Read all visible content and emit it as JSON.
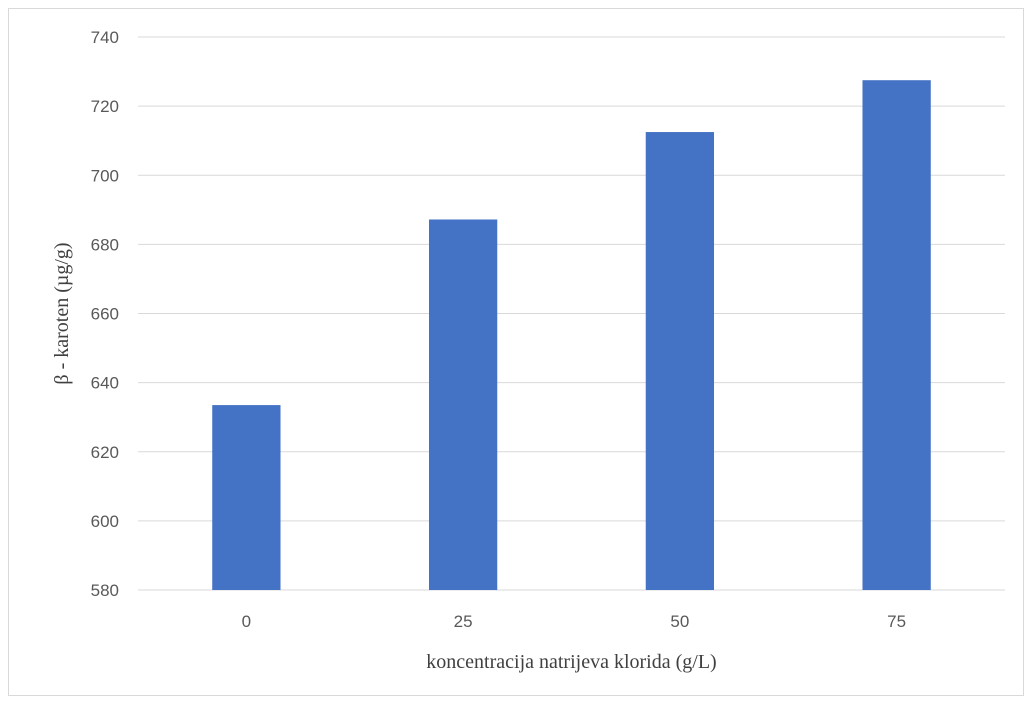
{
  "chart_data": {
    "type": "bar",
    "title": "",
    "xlabel": "koncentracija natrijeva klorida (g/L)",
    "ylabel": "β - karoten (µg/g)",
    "categories": [
      "0",
      "25",
      "50",
      "75"
    ],
    "values": [
      633.5,
      687.2,
      712.5,
      727.5
    ],
    "ylim": [
      580,
      740
    ],
    "yticks": [
      580,
      600,
      620,
      640,
      660,
      680,
      700,
      720,
      740
    ],
    "grid": true,
    "legend": "none",
    "bar_color": "#4472C4",
    "grid_color": "#d9d9d9"
  }
}
